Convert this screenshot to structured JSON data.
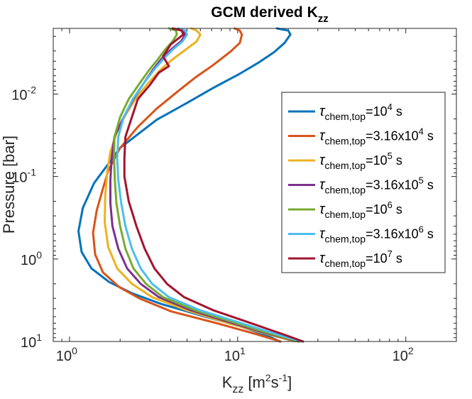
{
  "chart_data": {
    "type": "line",
    "title": "GCM derived K",
    "title_sub": "zz",
    "xlabel": "K",
    "xlabel_sub": "zz",
    "xlabel_units": "[m",
    "xlabel_units_sup1": "2",
    "xlabel_units_mid": "s",
    "xlabel_units_sup2": "-1",
    "xlabel_units_end": "]",
    "ylabel": "Pressure [bar]",
    "xscale": "log",
    "yscale": "log",
    "y_reversed": true,
    "xlim": [
      0.8,
      200
    ],
    "ylim": [
      0.0016,
      10
    ],
    "xticks": [
      1,
      10,
      100
    ],
    "yticks": [
      0.01,
      0.1,
      1,
      10
    ],
    "tick_labels": {
      "x": [
        {
          "base": "10",
          "exp": "0"
        },
        {
          "base": "10",
          "exp": "1"
        },
        {
          "base": "10",
          "exp": "2"
        }
      ],
      "y": [
        {
          "base": "10",
          "exp": "-2"
        },
        {
          "base": "10",
          "exp": "-1"
        },
        {
          "base": "10",
          "exp": "0"
        },
        {
          "base": "10",
          "exp": "1"
        }
      ]
    },
    "legend_location": "right, vertically centered",
    "series": [
      {
        "name": "τchem,top=10^4 s",
        "legend": {
          "symbol": "τ",
          "sub": "chem,top",
          "text": "=10",
          "sup": "4",
          "suffix": " s"
        },
        "color": "#0072BD",
        "x": [
          17.1,
          20,
          20.6,
          19,
          16.5,
          13.2,
          10.1,
          7.1,
          5.0,
          3.3,
          2.0,
          1.4,
          1.2,
          1.13,
          1.18,
          1.35,
          1.72,
          2.35,
          3.5,
          6.2,
          10.2,
          14.8,
          17.8
        ],
        "p": [
          0.0016,
          0.0017,
          0.0019,
          0.0024,
          0.0031,
          0.0042,
          0.0058,
          0.0085,
          0.0128,
          0.0205,
          0.045,
          0.12,
          0.24,
          0.46,
          0.82,
          1.3,
          1.9,
          2.6,
          3.5,
          4.9,
          6.5,
          8.4,
          10
        ]
      },
      {
        "name": "τchem,top=3.16x10^4 s",
        "legend": {
          "symbol": "τ",
          "sub": "chem,top",
          "text": "=3.16x10",
          "sup": "4",
          "suffix": " s"
        },
        "color": "#D95319",
        "x": [
          9.6,
          10.3,
          10.6,
          10.3,
          9.0,
          7.1,
          5.6,
          4.4,
          3.3,
          2.55,
          2.0,
          1.7,
          1.58,
          1.45,
          1.38,
          1.42,
          1.58,
          1.98,
          2.6,
          4.0,
          7.5,
          13.0,
          18.0
        ],
        "p": [
          0.0016,
          0.0017,
          0.0019,
          0.0024,
          0.0031,
          0.0045,
          0.0063,
          0.0093,
          0.015,
          0.025,
          0.045,
          0.085,
          0.14,
          0.26,
          0.48,
          0.88,
          1.45,
          2.2,
          3.0,
          4.3,
          6.0,
          8.2,
          10
        ]
      },
      {
        "name": "τchem,top=10^5 s",
        "legend": {
          "symbol": "τ",
          "sub": "chem,top",
          "text": "=10",
          "sup": "5",
          "suffix": " s"
        },
        "color": "#EDB120",
        "x": [
          5.3,
          5.7,
          6.0,
          5.7,
          4.9,
          4.1,
          3.5,
          2.95,
          2.5,
          2.15,
          1.9,
          1.75,
          1.68,
          1.63,
          1.62,
          1.7,
          1.92,
          2.35,
          3.1,
          5.0,
          8.8,
          15.5,
          22.0
        ],
        "p": [
          0.0016,
          0.0017,
          0.0019,
          0.0023,
          0.0029,
          0.0038,
          0.005,
          0.0073,
          0.011,
          0.018,
          0.03,
          0.05,
          0.085,
          0.17,
          0.36,
          0.72,
          1.3,
          2.0,
          2.9,
          4.2,
          6.0,
          8.3,
          10
        ]
      },
      {
        "name": "τchem,top=3.16x10^5 s",
        "legend": {
          "symbol": "τ",
          "sub": "chem,top",
          "text": "=3.16x10",
          "sup": "5",
          "suffix": " s"
        },
        "color": "#7E2F8E",
        "x": [
          4.1,
          4.7,
          4.9,
          4.6,
          4.0,
          3.5,
          3.15,
          2.75,
          2.4,
          2.1,
          1.85,
          1.78,
          1.75,
          1.75,
          1.8,
          1.95,
          2.2,
          2.65,
          3.4,
          5.3,
          9.3,
          16.0,
          23.0
        ],
        "p": [
          0.0016,
          0.0017,
          0.0019,
          0.0023,
          0.0029,
          0.0038,
          0.005,
          0.0075,
          0.0115,
          0.019,
          0.033,
          0.06,
          0.11,
          0.21,
          0.4,
          0.75,
          1.3,
          2.0,
          2.9,
          4.2,
          6.0,
          8.3,
          10
        ]
      },
      {
        "name": "τchem,top=10^6 s",
        "legend": {
          "symbol": "τ",
          "sub": "chem,top",
          "text": "=10",
          "sup": "6",
          "suffix": " s"
        },
        "color": "#77AC30",
        "x": [
          3.9,
          4.3,
          4.35,
          4.1,
          3.7,
          3.35,
          3.0,
          2.6,
          2.25,
          2.0,
          1.85,
          1.84,
          1.86,
          1.9,
          2.0,
          2.15,
          2.4,
          2.85,
          3.6,
          5.6,
          9.8,
          16.5,
          23.5
        ],
        "p": [
          0.0016,
          0.0017,
          0.0019,
          0.0023,
          0.0029,
          0.0038,
          0.005,
          0.0075,
          0.0115,
          0.019,
          0.033,
          0.06,
          0.11,
          0.21,
          0.4,
          0.75,
          1.3,
          2.0,
          2.9,
          4.2,
          6.0,
          8.3,
          10
        ]
      },
      {
        "name": "τchem,top=3.16x10^6 s",
        "legend": {
          "symbol": "τ",
          "sub": "chem,top",
          "text": "=3.16x10",
          "sup": "6",
          "suffix": " s"
        },
        "color": "#4DBEEE",
        "x": [
          4.4,
          4.9,
          5.0,
          4.7,
          4.1,
          3.6,
          3.2,
          2.75,
          2.38,
          2.1,
          1.95,
          1.92,
          1.95,
          2.03,
          2.15,
          2.35,
          2.65,
          3.1,
          3.9,
          6.0,
          10.5,
          17.5,
          24.0
        ],
        "p": [
          0.0016,
          0.0017,
          0.0019,
          0.0023,
          0.0029,
          0.0038,
          0.005,
          0.0075,
          0.0115,
          0.019,
          0.033,
          0.06,
          0.11,
          0.21,
          0.4,
          0.75,
          1.3,
          2.0,
          2.9,
          4.2,
          6.0,
          8.3,
          10
        ]
      },
      {
        "name": "τchem,top=10^7 s",
        "legend": {
          "symbol": "τ",
          "sub": "chem,top",
          "text": "=10",
          "sup": "7",
          "suffix": " s"
        },
        "color": "#A2142F",
        "x": [
          4.1,
          4.65,
          4.75,
          4.0,
          3.6,
          3.9,
          3.4,
          3.0,
          2.55,
          2.35,
          2.15,
          2.12,
          2.12,
          2.25,
          2.5,
          2.8,
          3.2,
          3.8,
          4.8,
          7.2,
          12.0,
          19.0,
          24.5
        ],
        "p": [
          0.0016,
          0.0017,
          0.0019,
          0.0025,
          0.0035,
          0.0046,
          0.0055,
          0.0078,
          0.0115,
          0.019,
          0.033,
          0.06,
          0.1,
          0.2,
          0.4,
          0.75,
          1.3,
          2.0,
          2.9,
          4.2,
          6.0,
          8.3,
          10
        ]
      }
    ]
  }
}
